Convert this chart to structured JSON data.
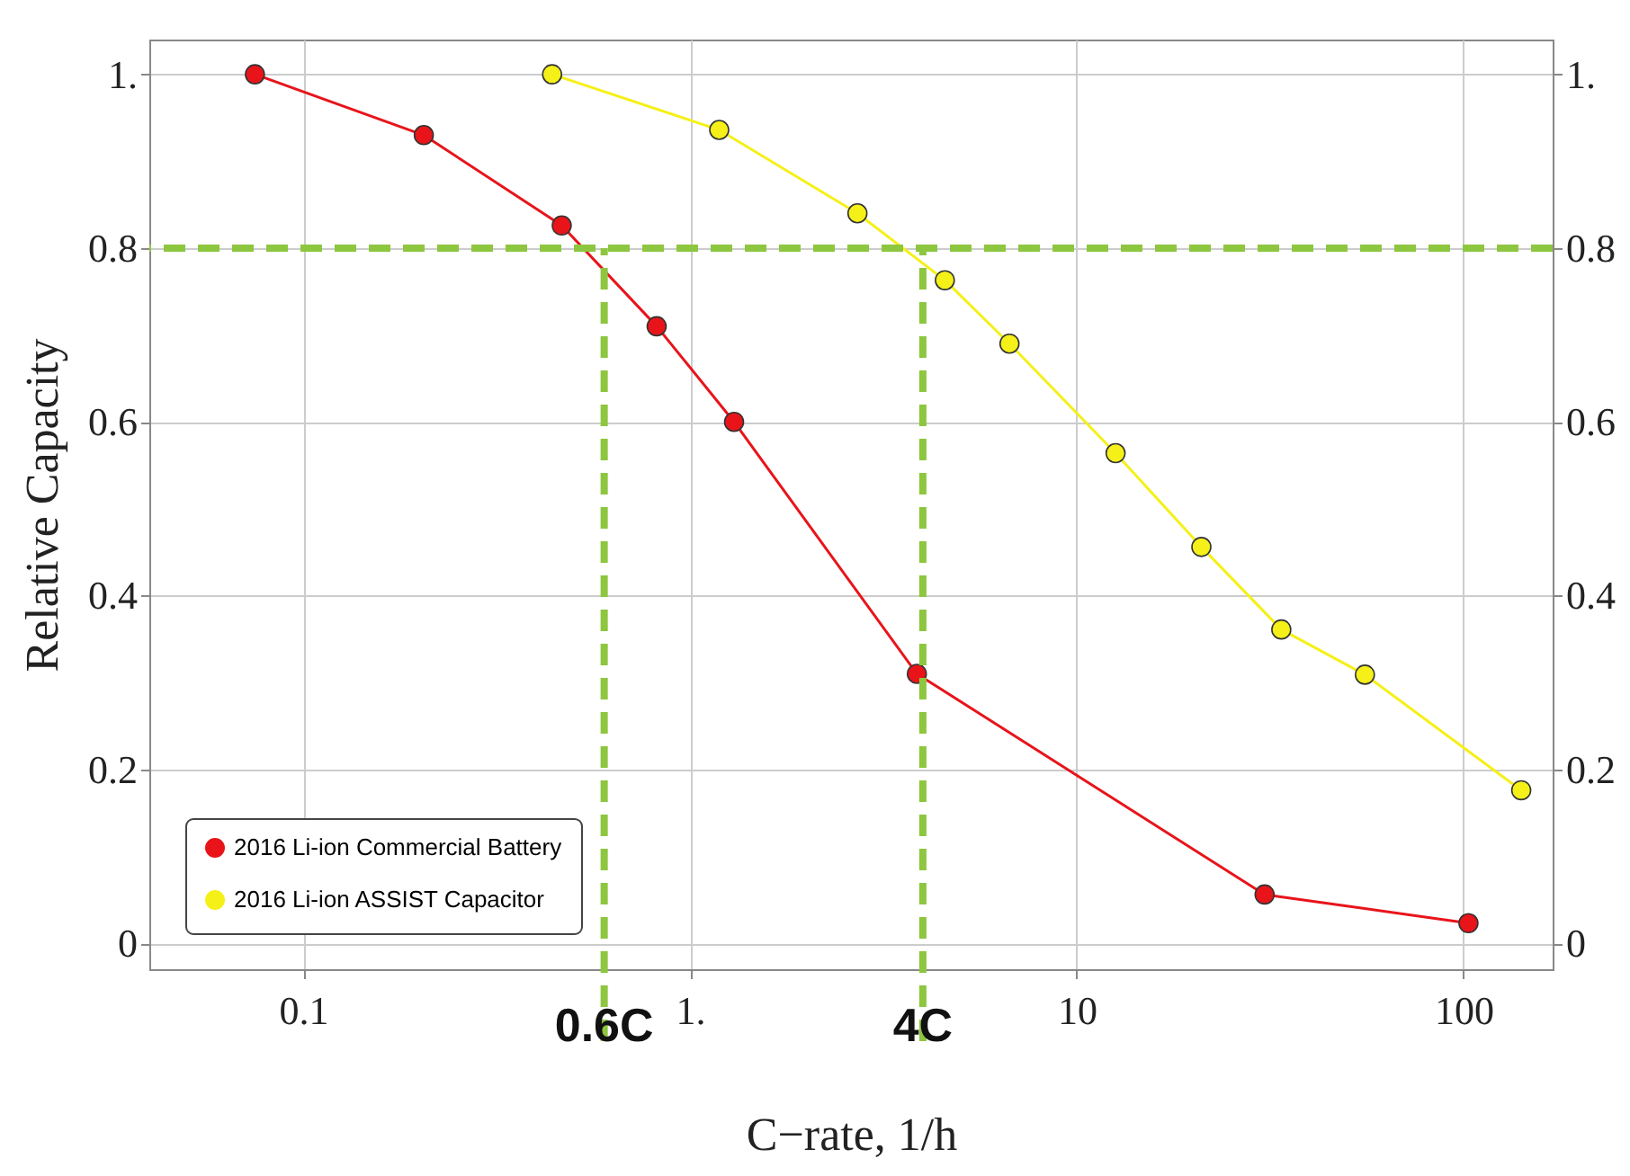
{
  "chart_data": {
    "type": "line",
    "xlabel": "C−rate, 1/h",
    "ylabel": "Relative Capacity",
    "log": "x",
    "xlim": [
      0.04,
      170
    ],
    "xticks": [
      0.1,
      {
        "value": 1,
        "label": "1."
      },
      10,
      100
    ],
    "ylim": [
      -0.03,
      1.04
    ],
    "yticks": [
      0,
      0.2,
      0.4,
      0.6,
      0.8,
      {
        "value": 1,
        "label": "1."
      }
    ],
    "y2lim": [
      -0.03,
      1.04
    ],
    "y2ticks": [
      0,
      0.2,
      0.4,
      0.6,
      0.8,
      {
        "value": 1,
        "label": "1."
      }
    ],
    "grid": true,
    "legend": "bottom left",
    "marker": "circle",
    "line_style": "solid",
    "series": [
      {
        "name": "2016 Li-ion Commercial Battery",
        "color": "#e8141a",
        "x": [
          0.075,
          0.205,
          0.466,
          0.82,
          1.3,
          3.86,
          30.6,
          103
        ],
        "values": [
          1.0,
          0.93,
          0.826,
          0.71,
          0.6,
          0.31,
          0.056,
          0.023
        ]
      },
      {
        "name": "2016 Li-ion ASSIST Capacitor",
        "color": "#f5f018",
        "x": [
          0.44,
          1.19,
          2.71,
          4.56,
          6.7,
          12.6,
          21,
          33.8,
          55.6,
          141
        ],
        "values": [
          1.0,
          0.936,
          0.84,
          0.763,
          0.69,
          0.564,
          0.456,
          0.361,
          0.309,
          0.176
        ]
      }
    ],
    "ref_lines": [
      {
        "axis": "y",
        "value": 0.8,
        "label": null,
        "color": "#8dc63f",
        "line_style": "dashed"
      },
      {
        "axis": "x",
        "value": 0.6,
        "label": "0.6C",
        "color": "#8dc63f",
        "line_style": "dashed"
      },
      {
        "axis": "x",
        "value": 4,
        "label": "4C",
        "color": "#8dc63f",
        "line_style": "dashed"
      }
    ]
  }
}
